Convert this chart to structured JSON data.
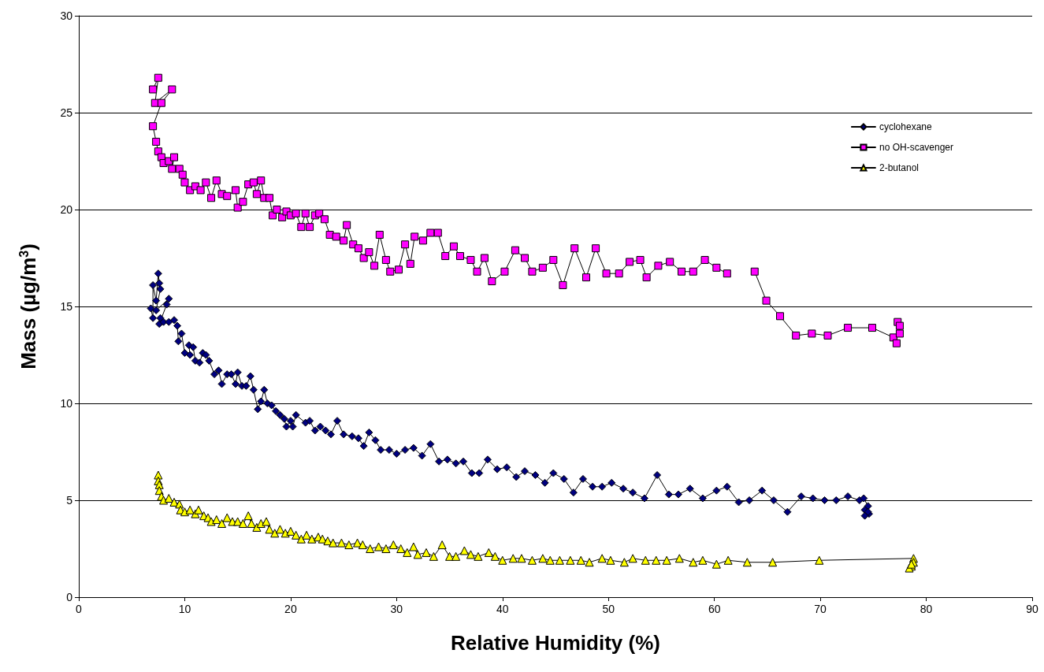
{
  "chart_data": {
    "type": "line",
    "xlabel": "Relative Humidity (%)",
    "ylabel": "Mass (µg/m$^{3}$)",
    "xlim": [
      0,
      90
    ],
    "xticks": [
      0,
      10,
      20,
      30,
      40,
      50,
      60,
      70,
      80,
      90
    ],
    "ylim": [
      0,
      30
    ],
    "yticks": [
      0,
      5,
      10,
      15,
      20,
      25,
      30
    ],
    "grid": "y",
    "legend": "top right",
    "line_style": "solid",
    "series": [
      {
        "name": "cyclohexane",
        "color": "#000080",
        "marker": "diamond",
        "x": [
          6.8,
          7.0,
          7.0,
          7.3,
          7.5,
          7.6,
          7.7,
          7.3,
          8.5,
          8.3,
          7.6,
          7.7,
          8.0,
          8.5,
          9.0,
          9.3,
          9.4,
          9.7,
          10.0,
          10.5,
          10.4,
          10.8,
          11.0,
          11.4,
          11.7,
          12.0,
          12.3,
          12.8,
          13.2,
          13.5,
          14.0,
          14.4,
          14.8,
          15.0,
          15.4,
          15.8,
          16.2,
          16.5,
          16.9,
          17.2,
          17.5,
          17.8,
          18.2,
          18.6,
          19.0,
          19.4,
          19.6,
          20.0,
          20.2,
          20.5,
          21.4,
          21.8,
          22.3,
          22.8,
          23.3,
          23.8,
          24.4,
          25.0,
          25.8,
          26.4,
          26.9,
          27.4,
          28.0,
          28.5,
          29.3,
          30.0,
          30.8,
          31.6,
          32.4,
          33.2,
          34.0,
          34.8,
          35.6,
          36.3,
          37.1,
          37.8,
          38.6,
          39.5,
          40.4,
          41.3,
          42.1,
          43.1,
          44.0,
          44.8,
          45.8,
          46.7,
          47.6,
          48.5,
          49.4,
          50.3,
          51.4,
          52.3,
          53.4,
          54.6,
          55.7,
          56.6,
          57.7,
          58.9,
          60.2,
          61.2,
          62.3,
          63.3,
          64.5,
          65.6,
          66.9,
          68.2,
          69.3,
          70.4,
          71.5,
          72.6,
          73.7,
          74.1,
          74.5,
          74.2,
          74.6,
          74.2,
          74.5
        ],
        "values": [
          14.9,
          14.4,
          16.1,
          15.3,
          16.7,
          16.2,
          15.9,
          14.8,
          15.4,
          15.1,
          14.1,
          14.4,
          14.2,
          14.2,
          14.3,
          14.0,
          13.2,
          13.6,
          12.6,
          12.5,
          13.0,
          12.9,
          12.2,
          12.1,
          12.6,
          12.5,
          12.2,
          11.5,
          11.7,
          11.0,
          11.5,
          11.5,
          11.0,
          11.6,
          10.9,
          10.9,
          11.4,
          10.7,
          9.7,
          10.1,
          10.7,
          10.0,
          9.9,
          9.6,
          9.4,
          9.2,
          8.8,
          9.1,
          8.8,
          9.4,
          9.0,
          9.1,
          8.6,
          8.8,
          8.6,
          8.4,
          9.1,
          8.4,
          8.3,
          8.2,
          7.8,
          8.5,
          8.1,
          7.6,
          7.6,
          7.4,
          7.6,
          7.7,
          7.3,
          7.9,
          7.0,
          7.1,
          6.9,
          7.0,
          6.4,
          6.4,
          7.1,
          6.6,
          6.7,
          6.2,
          6.5,
          6.3,
          5.9,
          6.4,
          6.1,
          5.4,
          6.1,
          5.7,
          5.7,
          5.9,
          5.6,
          5.4,
          5.1,
          6.3,
          5.3,
          5.3,
          5.6,
          5.1,
          5.5,
          5.7,
          4.9,
          5.0,
          5.5,
          5.0,
          4.4,
          5.2,
          5.1,
          5.0,
          5.0,
          5.2,
          5.0,
          5.1,
          4.7,
          4.5,
          4.3,
          4.2,
          4.4
        ]
      },
      {
        "name": "no OH-scavenger",
        "color": "#ff00ff",
        "marker": "square",
        "x": [
          7.0,
          7.5,
          7.2,
          8.8,
          7.8,
          7.0,
          7.3,
          7.5,
          7.8,
          8.0,
          8.5,
          9.0,
          8.8,
          9.5,
          9.8,
          10.0,
          10.5,
          11.0,
          11.5,
          12.0,
          12.5,
          13.0,
          13.5,
          14.0,
          14.8,
          15.0,
          15.5,
          16.0,
          16.5,
          16.8,
          17.2,
          17.5,
          18.0,
          18.3,
          18.7,
          19.2,
          19.6,
          20.0,
          20.5,
          21.0,
          21.4,
          21.8,
          22.3,
          22.7,
          23.2,
          23.7,
          24.3,
          25.0,
          25.3,
          25.9,
          26.4,
          26.9,
          27.4,
          27.9,
          28.4,
          29.0,
          29.4,
          30.2,
          30.8,
          31.3,
          31.7,
          32.5,
          33.2,
          33.9,
          34.6,
          35.4,
          36.0,
          37.0,
          37.6,
          38.3,
          39.0,
          40.2,
          41.2,
          42.1,
          42.8,
          43.8,
          44.8,
          45.7,
          46.8,
          47.9,
          48.8,
          49.8,
          51.0,
          52.0,
          53.0,
          53.6,
          54.7,
          55.8,
          56.9,
          58.0,
          59.1,
          60.2,
          61.2,
          62.5,
          63.8,
          64.9,
          66.2,
          67.7,
          69.2,
          70.7,
          72.6,
          74.9,
          76.9,
          77.2,
          77.3,
          77.5,
          77.5
        ],
        "values": [
          26.2,
          26.8,
          25.5,
          26.2,
          25.5,
          24.3,
          23.5,
          23.0,
          22.7,
          22.4,
          22.5,
          22.7,
          22.1,
          22.1,
          21.8,
          21.4,
          21.0,
          21.2,
          21.0,
          21.4,
          20.6,
          21.5,
          20.8,
          20.7,
          21.0,
          20.1,
          20.4,
          21.3,
          21.4,
          20.8,
          21.5,
          20.6,
          20.6,
          19.7,
          20.0,
          19.6,
          19.9,
          19.7,
          19.8,
          19.1,
          19.8,
          19.1,
          19.7,
          19.8,
          19.5,
          18.7,
          18.6,
          18.4,
          19.2,
          18.2,
          18.0,
          17.5,
          17.8,
          17.1,
          18.7,
          17.4,
          16.8,
          16.9,
          18.2,
          17.2,
          18.6,
          18.4,
          18.8,
          18.8,
          17.6,
          18.1,
          17.6,
          17.4,
          16.8,
          17.5,
          16.3,
          16.8,
          17.9,
          17.5,
          16.8,
          17.0,
          17.4,
          16.1,
          18.0,
          16.5,
          18.0,
          16.7,
          16.7,
          17.3,
          17.4,
          16.5,
          17.1,
          17.3,
          16.8,
          16.8,
          17.4,
          17.0,
          16.7,
          null,
          16.8,
          15.3,
          14.5,
          13.5,
          13.6,
          13.5,
          13.9,
          13.9,
          13.4,
          13.1,
          14.2,
          13.6,
          14.0
        ]
      },
      {
        "name": "2-butanol",
        "color": "#ffff00",
        "marker": "triangle",
        "x": [
          7.5,
          7.5,
          7.6,
          7.6,
          7.8,
          8.0,
          8.5,
          9.0,
          9.5,
          9.6,
          10.0,
          10.5,
          11.0,
          11.3,
          11.8,
          12.2,
          12.5,
          13.0,
          13.5,
          14.0,
          14.5,
          15.0,
          15.5,
          16.0,
          16.3,
          16.8,
          17.2,
          17.7,
          18.0,
          18.5,
          19.0,
          19.5,
          20.0,
          20.5,
          21.0,
          21.5,
          22.0,
          22.6,
          23.0,
          23.5,
          24.0,
          24.8,
          25.5,
          26.3,
          26.8,
          27.5,
          28.3,
          29.0,
          29.7,
          30.4,
          31.0,
          31.6,
          32.0,
          32.8,
          33.5,
          34.3,
          35.0,
          35.6,
          36.4,
          37.0,
          37.7,
          38.7,
          39.3,
          40.0,
          41.0,
          41.8,
          42.8,
          43.8,
          44.5,
          45.4,
          46.4,
          47.4,
          48.2,
          49.4,
          50.2,
          51.5,
          52.3,
          53.5,
          54.5,
          55.5,
          56.7,
          58.0,
          58.9,
          60.2,
          61.3,
          63.1,
          65.5,
          69.9,
          78.8,
          78.8,
          78.6,
          78.4,
          78.6
        ],
        "values": [
          6.3,
          6.0,
          5.8,
          5.5,
          5.2,
          5.0,
          5.1,
          4.9,
          4.8,
          4.5,
          4.4,
          4.5,
          4.3,
          4.5,
          4.2,
          4.1,
          3.9,
          4.0,
          3.8,
          4.1,
          3.9,
          3.9,
          3.8,
          4.2,
          3.8,
          3.6,
          3.8,
          3.9,
          3.5,
          3.3,
          3.5,
          3.3,
          3.4,
          3.2,
          3.0,
          3.2,
          3.0,
          3.1,
          3.0,
          2.9,
          2.8,
          2.8,
          2.7,
          2.8,
          2.7,
          2.5,
          2.6,
          2.5,
          2.7,
          2.5,
          2.3,
          2.6,
          2.2,
          2.3,
          2.1,
          2.7,
          2.1,
          2.1,
          2.4,
          2.2,
          2.1,
          2.3,
          2.1,
          1.9,
          2.0,
          2.0,
          1.9,
          2.0,
          1.9,
          1.9,
          1.9,
          1.9,
          1.8,
          2.0,
          1.9,
          1.8,
          2.0,
          1.9,
          1.9,
          1.9,
          2.0,
          1.8,
          1.9,
          1.7,
          1.9,
          1.8,
          1.8,
          1.9,
          2.0,
          1.8,
          1.6,
          1.5,
          1.7
        ]
      }
    ]
  }
}
